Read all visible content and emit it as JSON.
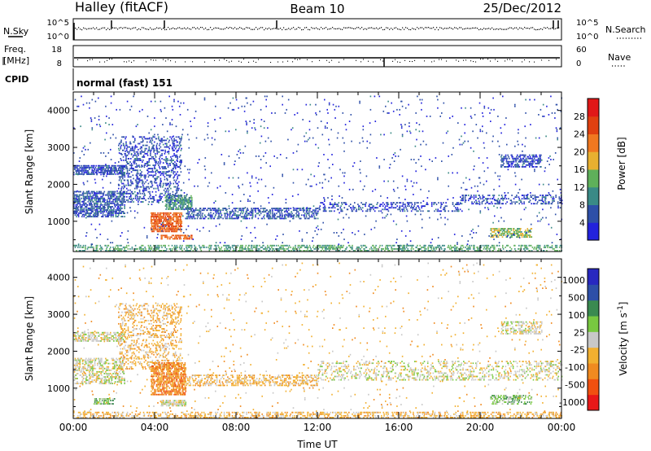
{
  "header": {
    "station": "Halley (fitACF)",
    "beam": "Beam 10",
    "date": "25/Dec/2012"
  },
  "strips": {
    "nsky": {
      "label": "N.Sky",
      "ticks": [
        "10^5",
        "10^0"
      ]
    },
    "nsearch": {
      "label": "N.Search",
      "ticks": [
        "10^5",
        "10^0"
      ]
    },
    "freq": {
      "label_line1": "Freq.",
      "label_line2": "[MHz]",
      "ticks": [
        "18",
        "8"
      ]
    },
    "nave": {
      "label": "Nave",
      "ticks": [
        "60",
        "0"
      ]
    },
    "cpid": {
      "label": "CPID",
      "value": "normal (fast) 151"
    }
  },
  "colors": {
    "power": [
      "#2222dd",
      "#2e4fa8",
      "#3a8a86",
      "#5fb05a",
      "#e8b030",
      "#f07820",
      "#e04010",
      "#e01818"
    ],
    "velocity": [
      "#e81818",
      "#f05010",
      "#f08a20",
      "#f2b030",
      "#c8c8c8",
      "#78c840",
      "#3a8a50",
      "#2e4fa8",
      "#2828c0"
    ],
    "markers": "#000000"
  },
  "chart_data": [
    {
      "type": "heatmap",
      "name": "power-panel",
      "xlabel": "",
      "ylabel": "Slant Range [km]",
      "x_ticks": [
        "00:00",
        "04:00",
        "08:00",
        "12:00",
        "16:00",
        "20:00",
        "00:00"
      ],
      "xlim": [
        0,
        24
      ],
      "ylim": [
        180,
        4500
      ],
      "y_ticks": [
        1000,
        2000,
        3000,
        4000
      ],
      "colorbar": {
        "label": "Power [dB]",
        "ticks": [
          4,
          8,
          12,
          16,
          20,
          24,
          28
        ],
        "range": [
          0,
          32
        ]
      },
      "features": [
        {
          "t0": 0.0,
          "t1": 2.5,
          "r0": 2250,
          "r1": 2500,
          "level": 5,
          "density": 0.55
        },
        {
          "t0": 0.0,
          "t1": 2.5,
          "r0": 1100,
          "r1": 1800,
          "level": 6,
          "density": 0.45
        },
        {
          "t0": 2.2,
          "t1": 5.3,
          "r0": 1500,
          "r1": 3300,
          "level": 5,
          "density": 0.22
        },
        {
          "t0": 3.8,
          "t1": 5.3,
          "r0": 700,
          "r1": 1200,
          "level": 24,
          "density": 0.6
        },
        {
          "t0": 4.5,
          "t1": 5.8,
          "r0": 1300,
          "r1": 1700,
          "level": 11,
          "density": 0.5
        },
        {
          "t0": 4.3,
          "t1": 5.8,
          "r0": 500,
          "r1": 600,
          "level": 24,
          "density": 0.5
        },
        {
          "t0": 5.5,
          "t1": 12.0,
          "r0": 1050,
          "r1": 1350,
          "level": 6,
          "density": 0.35
        },
        {
          "t0": 12.0,
          "t1": 19.0,
          "r0": 1250,
          "r1": 1500,
          "level": 5,
          "density": 0.2
        },
        {
          "t0": 19.0,
          "t1": 24.0,
          "r0": 1450,
          "r1": 1700,
          "level": 5,
          "density": 0.25
        },
        {
          "t0": 21.0,
          "t1": 23.0,
          "r0": 2450,
          "r1": 2800,
          "level": 5,
          "density": 0.4
        },
        {
          "t0": 20.5,
          "t1": 22.5,
          "r0": 550,
          "r1": 800,
          "level": 15,
          "density": 0.45
        },
        {
          "t0": 0.0,
          "t1": 24.0,
          "r0": 180,
          "r1": 320,
          "level": 12,
          "density": 0.3
        },
        {
          "t0": 0.0,
          "t1": 24.0,
          "r0": 350,
          "r1": 4400,
          "level": 5,
          "density": 0.015
        }
      ]
    },
    {
      "type": "heatmap",
      "name": "velocity-panel",
      "xlabel": "Time UT",
      "ylabel": "Slant Range [km]",
      "x_ticks": [
        "00:00",
        "04:00",
        "08:00",
        "12:00",
        "16:00",
        "20:00",
        "00:00"
      ],
      "xlim": [
        0,
        24
      ],
      "ylim": [
        180,
        4500
      ],
      "y_ticks": [
        1000,
        2000,
        3000,
        4000
      ],
      "colorbar": {
        "label": "Velocity [m s^-1]",
        "ticks": [
          1000,
          500,
          100,
          25,
          -25,
          -100,
          -500,
          -1000
        ]
      },
      "features": [
        {
          "t0": 0.0,
          "t1": 2.5,
          "r0": 2250,
          "r1": 2500,
          "cls": 4,
          "density": 0.4
        },
        {
          "t0": 0.0,
          "t1": 2.5,
          "r0": 1100,
          "r1": 1800,
          "cls": 4,
          "density": 0.35
        },
        {
          "t0": 2.2,
          "t1": 5.3,
          "r0": 1500,
          "r1": 3300,
          "cls": 3,
          "density": 0.18
        },
        {
          "t0": 3.8,
          "t1": 5.5,
          "r0": 800,
          "r1": 1700,
          "cls": 2,
          "density": 0.55
        },
        {
          "t0": 4.3,
          "t1": 5.5,
          "r0": 500,
          "r1": 650,
          "cls": 4,
          "density": 0.6
        },
        {
          "t0": 1.0,
          "t1": 2.0,
          "r0": 550,
          "r1": 700,
          "cls": 5,
          "density": 0.5
        },
        {
          "t0": 5.5,
          "t1": 12.0,
          "r0": 1050,
          "r1": 1350,
          "cls": 3,
          "density": 0.3
        },
        {
          "t0": 12.0,
          "t1": 24.0,
          "r0": 1200,
          "r1": 1700,
          "cls": 4,
          "density": 0.18
        },
        {
          "t0": 20.5,
          "t1": 22.5,
          "r0": 550,
          "r1": 800,
          "cls": 5,
          "density": 0.35
        },
        {
          "t0": 21.0,
          "t1": 23.0,
          "r0": 2450,
          "r1": 2800,
          "cls": 4,
          "density": 0.3
        },
        {
          "t0": 0.0,
          "t1": 24.0,
          "r0": 180,
          "r1": 330,
          "cls": 3,
          "density": 0.3
        },
        {
          "t0": 0.0,
          "t1": 24.0,
          "r0": 350,
          "r1": 4400,
          "cls": 3,
          "density": 0.012
        }
      ]
    }
  ]
}
